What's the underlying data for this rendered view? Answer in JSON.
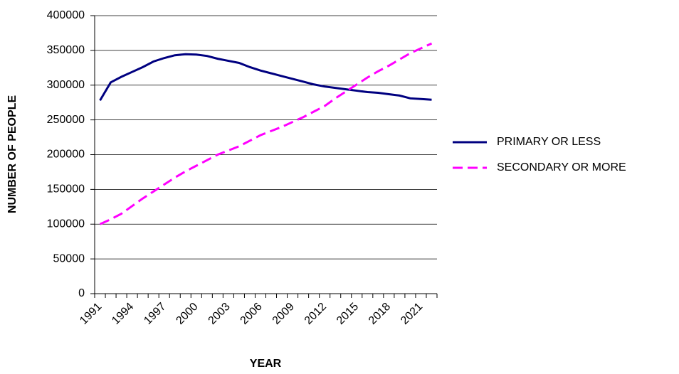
{
  "chart_data": {
    "type": "line",
    "x_label": "YEAR",
    "y_label": "NUMBER OF PEOPLE",
    "categories": [
      "1991",
      null,
      null,
      "1994",
      null,
      null,
      "1997",
      null,
      null,
      "2000",
      null,
      null,
      "2003",
      null,
      null,
      "2006",
      null,
      null,
      "2009",
      null,
      null,
      "2012",
      null,
      null,
      "2015",
      null,
      null,
      "2018",
      null,
      null,
      "2021",
      null
    ],
    "series": [
      {
        "name": "PRIMARY OR LESS",
        "color": "#000080",
        "line_style": "solid",
        "values": [
          278000,
          304000,
          312000,
          319000,
          326000,
          334000,
          339000,
          343000,
          344500,
          344000,
          342000,
          338000,
          335000,
          332000,
          326000,
          321000,
          317000,
          313000,
          309000,
          305000,
          301000,
          298000,
          296000,
          294000,
          292000,
          290000,
          289000,
          287000,
          285000,
          281000,
          280000,
          279000
        ]
      },
      {
        "name": "SECONDARY OR MORE",
        "color": "#ff00ff",
        "line_style": "dashed",
        "values": [
          100000,
          107000,
          115000,
          126000,
          137000,
          147000,
          157000,
          167000,
          176000,
          184000,
          192000,
          200000,
          206000,
          212000,
          220000,
          228000,
          234000,
          240000,
          247000,
          254000,
          262000,
          270000,
          281000,
          291000,
          301000,
          311000,
          320000,
          328000,
          337000,
          346000,
          353000,
          360000
        ]
      }
    ],
    "ylim": [
      0,
      400000
    ],
    "yticks": [
      0,
      50000,
      100000,
      150000,
      200000,
      250000,
      300000,
      350000,
      400000
    ],
    "grid": true,
    "legend": "right"
  }
}
